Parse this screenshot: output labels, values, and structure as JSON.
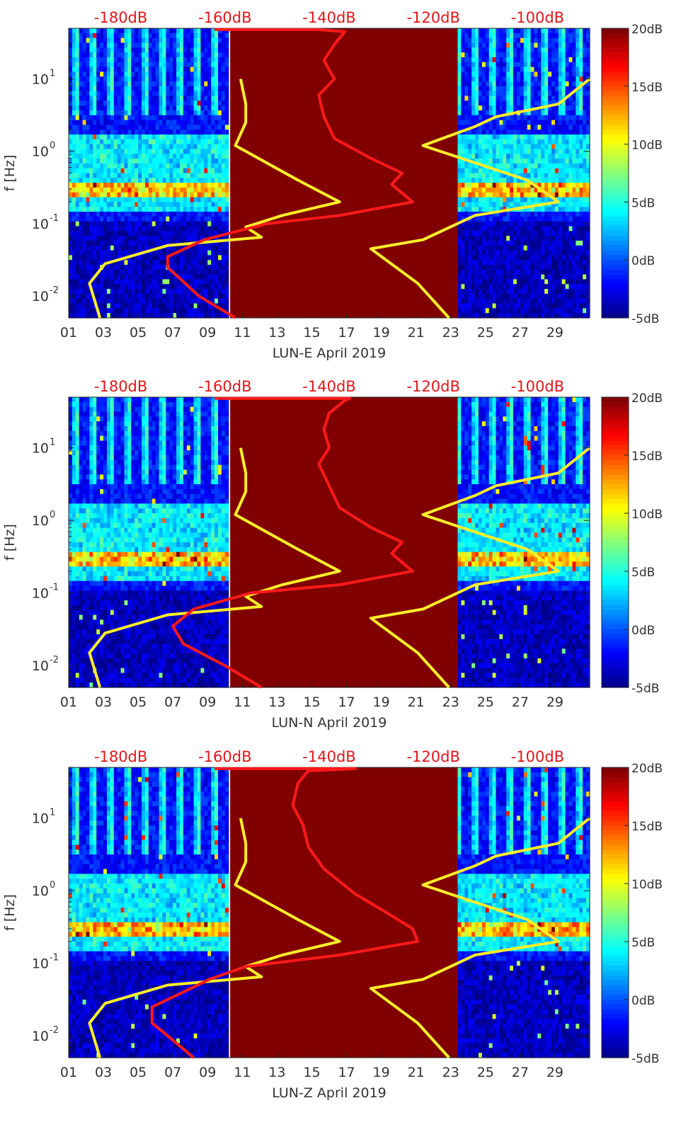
{
  "chart_data": [
    {
      "type": "heatmap",
      "station": "LUN-E",
      "xlabel": "LUN-E April 2019",
      "ylabel": "f [Hz]",
      "x_ticks": [
        "01",
        "03",
        "05",
        "07",
        "09",
        "11",
        "13",
        "15",
        "17",
        "19",
        "21",
        "23",
        "25",
        "27",
        "29"
      ],
      "y_ticks": [
        {
          "value": 0.01,
          "base": "10",
          "exp": "-2"
        },
        {
          "value": 0.1,
          "base": "10",
          "exp": "-1"
        },
        {
          "value": 1,
          "base": "10",
          "exp": "0"
        },
        {
          "value": 10,
          "base": "10",
          "exp": "1"
        }
      ],
      "top_axis_ticks": [
        "-180dB",
        "-160dB",
        "-140dB",
        "-120dB",
        "-100dB"
      ],
      "top_axis_range_db": [
        -190,
        -90
      ],
      "colorbar_ticks": [
        "20dB",
        "15dB",
        "10dB",
        "5dB",
        "0dB",
        "-5dB"
      ],
      "colorbar_range_db": [
        -5,
        20
      ],
      "colormap": "jet",
      "xlim_day": [
        1,
        31
      ],
      "ylim_hz": [
        0.005,
        50
      ],
      "yscale": "log",
      "data_gap_days": [
        10.3,
        23.4
      ],
      "series": [
        {
          "role": "psd-reference",
          "color": "#ffee2a",
          "points": [
            [
              -157,
              10
            ],
            [
              -156,
              4.5
            ],
            [
              -156,
              2.5
            ],
            [
              -158,
              1.2
            ],
            [
              -146,
              0.4
            ],
            [
              -138,
              0.2
            ],
            [
              -149,
              0.13
            ],
            [
              -156,
              0.09
            ],
            [
              -153,
              0.065
            ],
            [
              -171,
              0.05
            ],
            [
              -183,
              0.028
            ],
            [
              -186,
              0.015
            ],
            [
              -184,
              0.005
            ]
          ]
        },
        {
          "role": "psd-reference",
          "color": "#ffee2a",
          "points": [
            [
              -90,
              10
            ],
            [
              -96,
              4.5
            ],
            [
              -108,
              3
            ],
            [
              -112,
              2.2
            ],
            [
              -122,
              1.2
            ],
            [
              -102,
              0.4
            ],
            [
              -96,
              0.2
            ],
            [
              -112,
              0.13
            ],
            [
              -122,
              0.06
            ],
            [
              -132,
              0.045
            ],
            [
              -123,
              0.015
            ],
            [
              -117,
              0.005
            ]
          ]
        },
        {
          "role": "psd-median",
          "color": "#ff1a1a",
          "points": [
            [
              -162,
              48
            ],
            [
              -142,
              48
            ],
            [
              -137,
              45
            ],
            [
              -139,
              30
            ],
            [
              -141,
              18
            ],
            [
              -139,
              10
            ],
            [
              -142,
              6
            ],
            [
              -141,
              3
            ],
            [
              -139,
              1.5
            ],
            [
              -132,
              0.8
            ],
            [
              -126,
              0.5
            ],
            [
              -128,
              0.35
            ],
            [
              -124,
              0.2
            ],
            [
              -138,
              0.13
            ],
            [
              -152,
              0.1
            ],
            [
              -164,
              0.06
            ],
            [
              -171,
              0.035
            ],
            [
              -171,
              0.025
            ],
            [
              -165,
              0.01
            ],
            [
              -158,
              0.005
            ]
          ]
        }
      ]
    },
    {
      "type": "heatmap",
      "station": "LUN-N",
      "xlabel": "LUN-N April 2019",
      "ylabel": "f [Hz]",
      "x_ticks": [
        "01",
        "03",
        "05",
        "07",
        "09",
        "11",
        "13",
        "15",
        "17",
        "19",
        "21",
        "23",
        "25",
        "27",
        "29"
      ],
      "y_ticks": [
        {
          "value": 0.01,
          "base": "10",
          "exp": "-2"
        },
        {
          "value": 0.1,
          "base": "10",
          "exp": "-1"
        },
        {
          "value": 1,
          "base": "10",
          "exp": "0"
        },
        {
          "value": 10,
          "base": "10",
          "exp": "1"
        }
      ],
      "top_axis_ticks": [
        "-180dB",
        "-160dB",
        "-140dB",
        "-120dB",
        "-100dB"
      ],
      "top_axis_range_db": [
        -190,
        -90
      ],
      "colorbar_ticks": [
        "20dB",
        "15dB",
        "10dB",
        "5dB",
        "0dB",
        "-5dB"
      ],
      "colorbar_range_db": [
        -5,
        20
      ],
      "colormap": "jet",
      "xlim_day": [
        1,
        31
      ],
      "ylim_hz": [
        0.005,
        50
      ],
      "yscale": "log",
      "data_gap_days": [
        10.3,
        23.4
      ],
      "series": [
        {
          "role": "psd-reference",
          "color": "#ffee2a",
          "points": [
            [
              -157,
              10
            ],
            [
              -156,
              4.5
            ],
            [
              -156,
              2.5
            ],
            [
              -158,
              1.2
            ],
            [
              -146,
              0.4
            ],
            [
              -138,
              0.2
            ],
            [
              -149,
              0.13
            ],
            [
              -156,
              0.09
            ],
            [
              -153,
              0.065
            ],
            [
              -171,
              0.05
            ],
            [
              -183,
              0.028
            ],
            [
              -186,
              0.015
            ],
            [
              -184,
              0.005
            ]
          ]
        },
        {
          "role": "psd-reference",
          "color": "#ffee2a",
          "points": [
            [
              -90,
              10
            ],
            [
              -96,
              4.5
            ],
            [
              -108,
              3
            ],
            [
              -112,
              2.2
            ],
            [
              -122,
              1.2
            ],
            [
              -102,
              0.4
            ],
            [
              -96,
              0.2
            ],
            [
              -112,
              0.13
            ],
            [
              -122,
              0.06
            ],
            [
              -132,
              0.045
            ],
            [
              -123,
              0.015
            ],
            [
              -117,
              0.005
            ]
          ]
        },
        {
          "role": "psd-median",
          "color": "#ff1a1a",
          "points": [
            [
              -162,
              48
            ],
            [
              -136,
              48
            ],
            [
              -137,
              45
            ],
            [
              -140,
              30
            ],
            [
              -141,
              18
            ],
            [
              -140,
              10
            ],
            [
              -142,
              6
            ],
            [
              -140,
              3
            ],
            [
              -138,
              1.5
            ],
            [
              -132,
              0.8
            ],
            [
              -126,
              0.5
            ],
            [
              -128,
              0.35
            ],
            [
              -124,
              0.2
            ],
            [
              -138,
              0.13
            ],
            [
              -155,
              0.1
            ],
            [
              -166,
              0.06
            ],
            [
              -170,
              0.035
            ],
            [
              -168,
              0.02
            ],
            [
              -160,
              0.01
            ],
            [
              -153,
              0.005
            ]
          ]
        }
      ]
    },
    {
      "type": "heatmap",
      "station": "LUN-Z",
      "xlabel": "LUN-Z April 2019",
      "ylabel": "f [Hz]",
      "x_ticks": [
        "01",
        "03",
        "05",
        "07",
        "09",
        "11",
        "13",
        "15",
        "17",
        "19",
        "21",
        "23",
        "25",
        "27",
        "29"
      ],
      "y_ticks": [
        {
          "value": 0.01,
          "base": "10",
          "exp": "-2"
        },
        {
          "value": 0.1,
          "base": "10",
          "exp": "-1"
        },
        {
          "value": 1,
          "base": "10",
          "exp": "0"
        },
        {
          "value": 10,
          "base": "10",
          "exp": "1"
        }
      ],
      "top_axis_ticks": [
        "-180dB",
        "-160dB",
        "-140dB",
        "-120dB",
        "-100dB"
      ],
      "top_axis_range_db": [
        -190,
        -90
      ],
      "colorbar_ticks": [
        "20dB",
        "15dB",
        "10dB",
        "5dB",
        "0dB",
        "-5dB"
      ],
      "colorbar_range_db": [
        -5,
        20
      ],
      "colormap": "jet",
      "xlim_day": [
        1,
        31
      ],
      "ylim_hz": [
        0.005,
        50
      ],
      "yscale": "log",
      "data_gap_days": [
        10.3,
        23.4
      ],
      "series": [
        {
          "role": "psd-reference",
          "color": "#ffee2a",
          "points": [
            [
              -157,
              10
            ],
            [
              -156,
              4.5
            ],
            [
              -156,
              2.5
            ],
            [
              -158,
              1.2
            ],
            [
              -146,
              0.4
            ],
            [
              -138,
              0.2
            ],
            [
              -149,
              0.13
            ],
            [
              -156,
              0.09
            ],
            [
              -153,
              0.065
            ],
            [
              -171,
              0.05
            ],
            [
              -183,
              0.028
            ],
            [
              -186,
              0.015
            ],
            [
              -184,
              0.005
            ]
          ]
        },
        {
          "role": "psd-reference",
          "color": "#ffee2a",
          "points": [
            [
              -90,
              10
            ],
            [
              -96,
              4.5
            ],
            [
              -108,
              3
            ],
            [
              -112,
              2.2
            ],
            [
              -122,
              1.2
            ],
            [
              -102,
              0.4
            ],
            [
              -96,
              0.2
            ],
            [
              -112,
              0.13
            ],
            [
              -122,
              0.06
            ],
            [
              -132,
              0.045
            ],
            [
              -123,
              0.015
            ],
            [
              -117,
              0.005
            ]
          ]
        },
        {
          "role": "psd-median",
          "color": "#ff1a1a",
          "points": [
            [
              -162,
              48
            ],
            [
              -135,
              48
            ],
            [
              -144,
              45
            ],
            [
              -146,
              30
            ],
            [
              -147,
              15
            ],
            [
              -145,
              8
            ],
            [
              -144,
              4
            ],
            [
              -141,
              2
            ],
            [
              -135,
              0.9
            ],
            [
              -129,
              0.5
            ],
            [
              -124,
              0.3
            ],
            [
              -123,
              0.2
            ],
            [
              -138,
              0.13
            ],
            [
              -156,
              0.09
            ],
            [
              -163,
              0.06
            ],
            [
              -168,
              0.04
            ],
            [
              -174,
              0.025
            ],
            [
              -174,
              0.015
            ],
            [
              -171,
              0.01
            ],
            [
              -166,
              0.005
            ]
          ]
        }
      ]
    }
  ]
}
